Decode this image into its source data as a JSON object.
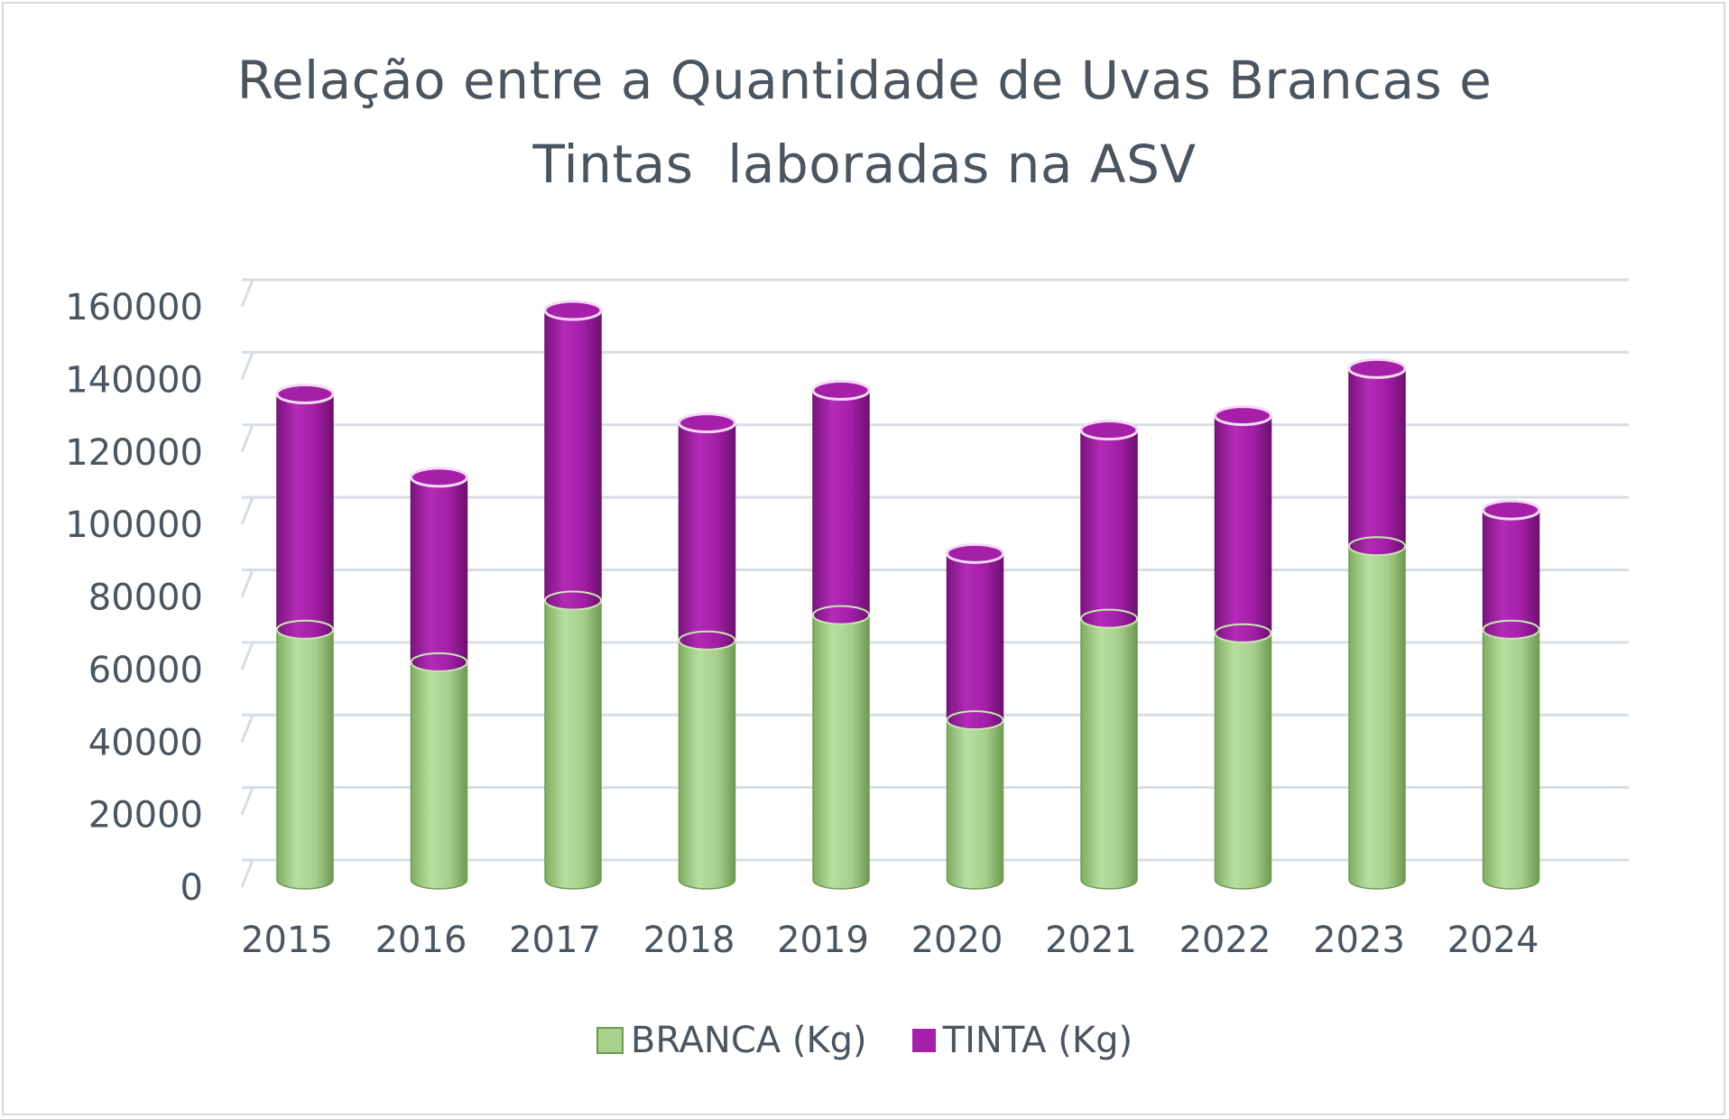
{
  "chart_data": {
    "type": "bar",
    "stacked": true,
    "style": "3d-cylinder",
    "title_lines": [
      "Relação entre a Quantidade de Uvas Brancas e",
      "Tintas  laboradas na ASV"
    ],
    "categories": [
      "2015",
      "2016",
      "2017",
      "2018",
      "2019",
      "2020",
      "2021",
      "2022",
      "2023",
      "2024"
    ],
    "series": [
      {
        "name": "BRANCA (Kg)",
        "color": "#a9d18e",
        "values": [
          69000,
          60000,
          77000,
          66000,
          73000,
          44000,
          72000,
          68000,
          92000,
          69000
        ]
      },
      {
        "name": "TINTA (Kg)",
        "color": "#a51fa8",
        "values": [
          65000,
          51000,
          80000,
          60000,
          62000,
          46000,
          52000,
          60000,
          49000,
          33000
        ]
      }
    ],
    "y_ticks": [
      "0",
      "20000",
      "40000",
      "60000",
      "80000",
      "100000",
      "120000",
      "140000",
      "160000"
    ],
    "ylim": [
      0,
      160000
    ],
    "grid": true,
    "legend_position": "bottom"
  }
}
